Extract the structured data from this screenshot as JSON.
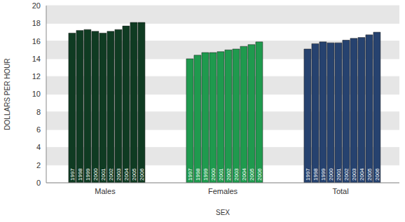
{
  "chart_data": {
    "type": "bar",
    "categories": [
      "Males",
      "Females",
      "Total"
    ],
    "colors": [
      "#0f3b22",
      "#1f9a4e",
      "#26426f"
    ],
    "series": [
      {
        "name": "1997",
        "values": [
          16.9,
          14.0,
          15.1
        ]
      },
      {
        "name": "1998",
        "values": [
          17.2,
          14.4,
          15.7
        ]
      },
      {
        "name": "1999",
        "values": [
          17.3,
          14.7,
          15.9
        ]
      },
      {
        "name": "2000",
        "values": [
          17.1,
          14.7,
          15.8
        ]
      },
      {
        "name": "2001",
        "values": [
          16.9,
          14.8,
          15.8
        ]
      },
      {
        "name": "2002",
        "values": [
          17.1,
          15.0,
          16.1
        ]
      },
      {
        "name": "2003",
        "values": [
          17.3,
          15.1,
          16.3
        ]
      },
      {
        "name": "2004",
        "values": [
          17.7,
          15.4,
          16.4
        ]
      },
      {
        "name": "2005",
        "values": [
          18.1,
          15.6,
          16.7
        ]
      },
      {
        "name": "2006",
        "values": [
          18.1,
          15.9,
          17.0
        ]
      }
    ],
    "x_label": "SEX",
    "y_label": "DOLLARS PER HOUR",
    "ylim": [
      0,
      20
    ],
    "yticks": [
      0,
      2,
      4,
      6,
      8,
      10,
      12,
      14,
      16,
      18,
      20
    ],
    "grid": true
  }
}
